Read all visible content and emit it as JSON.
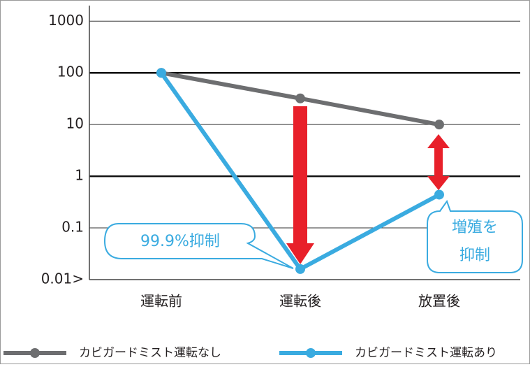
{
  "chart_data": {
    "type": "line",
    "log_y": true,
    "grid": true,
    "categories": [
      "運転前",
      "運転後",
      "放置後"
    ],
    "series": [
      {
        "name": "カビガードミスト運転なし",
        "color": "#6d6e70",
        "values": [
          100,
          32,
          10
        ]
      },
      {
        "name": "カビガードミスト運転あり",
        "color": "#3aabe0",
        "values": [
          100,
          0.016,
          0.44
        ]
      }
    ],
    "ylim": [
      0.01,
      2000
    ],
    "yticks": [
      {
        "value": 0.01,
        "label": "0.01>"
      },
      {
        "value": 0.1,
        "label": "0.1"
      },
      1,
      10,
      100,
      1000
    ],
    "annotations": [
      "99.9%抑制",
      "増殖を",
      "抑制"
    ]
  }
}
